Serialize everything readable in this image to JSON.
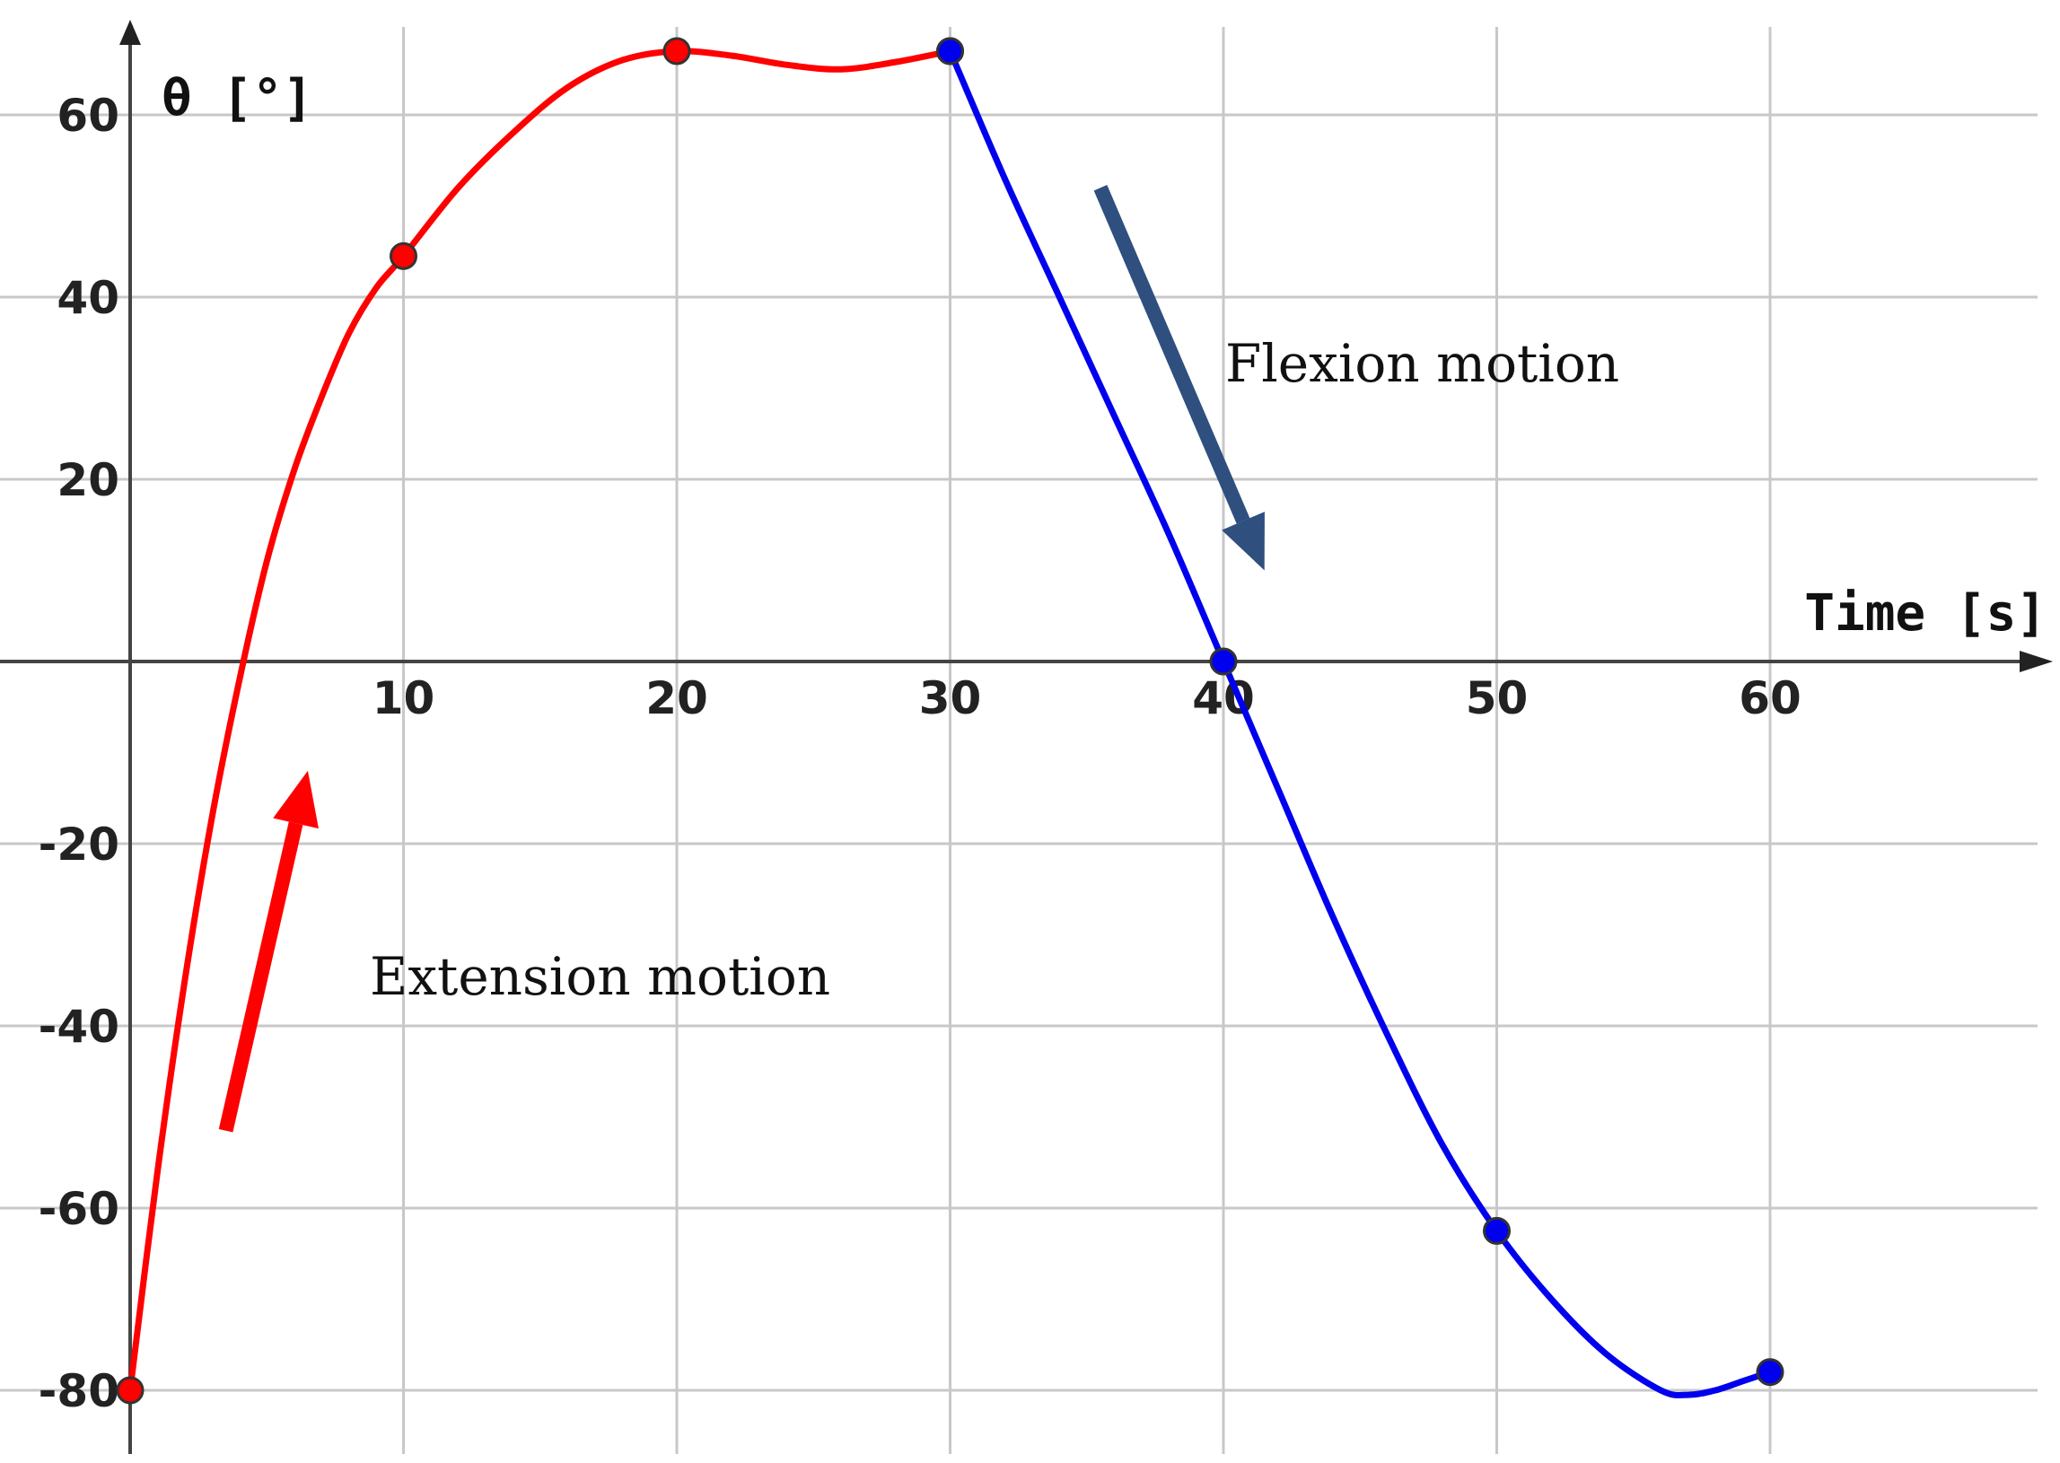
{
  "chart_data": {
    "type": "line",
    "title": "",
    "xlabel": "Time [s]",
    "ylabel": "θ [°]",
    "xlim": [
      0,
      70
    ],
    "ylim": [
      -85,
      70
    ],
    "x_ticks": [
      10,
      20,
      30,
      40,
      50,
      60
    ],
    "y_ticks": [
      -80,
      -60,
      -40,
      -20,
      20,
      40,
      60
    ],
    "grid": true,
    "series": [
      {
        "color": "#ff0000",
        "points": [
          [
            0,
            -80
          ],
          [
            10,
            44.5
          ],
          [
            20,
            67
          ],
          [
            30,
            67
          ]
        ],
        "curve": [
          [
            0,
            -80
          ],
          [
            1,
            -56
          ],
          [
            2,
            -35
          ],
          [
            3,
            -17
          ],
          [
            4,
            -2
          ],
          [
            5,
            11
          ],
          [
            6,
            21
          ],
          [
            7,
            29
          ],
          [
            8,
            36
          ],
          [
            9,
            41
          ],
          [
            10,
            44.5
          ],
          [
            12,
            52
          ],
          [
            14,
            58
          ],
          [
            16,
            63
          ],
          [
            18,
            66
          ],
          [
            20,
            67
          ],
          [
            22,
            66.5
          ],
          [
            24,
            65.5
          ],
          [
            26,
            65
          ],
          [
            28,
            65.8
          ],
          [
            30,
            67
          ]
        ]
      },
      {
        "color": "#0000ee",
        "points": [
          [
            30,
            67
          ],
          [
            40,
            0
          ],
          [
            50,
            -62.5
          ],
          [
            60,
            -78
          ]
        ],
        "curve": [
          [
            30,
            67
          ],
          [
            32,
            53
          ],
          [
            34,
            40
          ],
          [
            36,
            27
          ],
          [
            38,
            14
          ],
          [
            40,
            0
          ],
          [
            42,
            -14
          ],
          [
            44,
            -28
          ],
          [
            46,
            -41
          ],
          [
            48,
            -53
          ],
          [
            50,
            -62.5
          ],
          [
            52,
            -70
          ],
          [
            54,
            -76
          ],
          [
            56,
            -80
          ],
          [
            57,
            -80.5
          ],
          [
            58,
            -80
          ],
          [
            59,
            -79
          ],
          [
            60,
            -78
          ]
        ]
      }
    ],
    "annotations": [
      {
        "text": "Flexion motion",
        "color": "#2f4f7f",
        "from": [
          35.5,
          52
        ],
        "to": [
          41.5,
          10
        ]
      },
      {
        "text": "Extension motion",
        "color": "#ff0000",
        "from": [
          3.5,
          -51.5
        ],
        "to": [
          6.5,
          -12
        ]
      }
    ]
  }
}
